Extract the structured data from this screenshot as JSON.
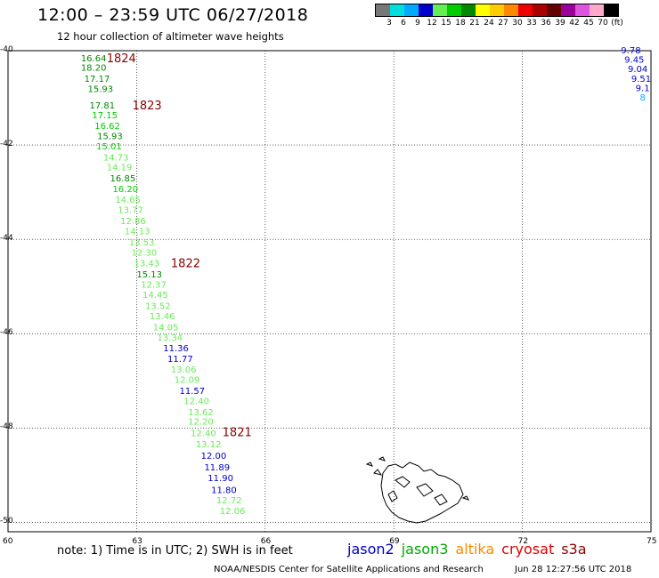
{
  "header": {
    "title": "12:00 – 23:59 UTC 06/27/2018",
    "subtitle": "12 hour collection of altimeter wave heights"
  },
  "legend": {
    "swatches": [
      {
        "color": "#777777"
      },
      {
        "color": "#00dddd"
      },
      {
        "color": "#00aaff"
      },
      {
        "color": "#0000cc"
      },
      {
        "color": "#66ee55"
      },
      {
        "color": "#00cc00"
      },
      {
        "color": "#008800"
      },
      {
        "color": "#ffff00"
      },
      {
        "color": "#ffcc00"
      },
      {
        "color": "#ff8800"
      },
      {
        "color": "#ee0000"
      },
      {
        "color": "#aa0000"
      },
      {
        "color": "#660000"
      },
      {
        "color": "#990099"
      },
      {
        "color": "#dd55dd"
      },
      {
        "color": "#ffaacc"
      },
      {
        "color": "#000000"
      }
    ],
    "tick_labels": [
      "3",
      "6",
      "9",
      "12",
      "15",
      "18",
      "21",
      "24",
      "27",
      "30",
      "33",
      "36",
      "39",
      "42",
      "45",
      "70",
      "(ft)"
    ]
  },
  "map": {
    "lat_ticks": [
      "-40",
      "-42",
      "-44",
      "-46",
      "-48",
      "-50"
    ],
    "lon_ticks": [
      "60",
      "63",
      "66",
      "69",
      "72",
      "75"
    ],
    "lat_range": [
      -50.2,
      -40.0
    ],
    "lon_range": [
      60,
      75
    ],
    "grid": "dotted",
    "track_main": [
      {
        "lat": -40.15,
        "lon": 61.7,
        "v": "16.64",
        "c": "#008800"
      },
      {
        "lat": -40.35,
        "lon": 61.7,
        "v": "18.20",
        "c": "#008800"
      },
      {
        "lat": -40.58,
        "lon": 61.78,
        "v": "17.17",
        "c": "#008800"
      },
      {
        "lat": -40.8,
        "lon": 61.86,
        "v": "15.93",
        "c": "#008800"
      },
      {
        "lat": -41.15,
        "lon": 61.9,
        "v": "17.81",
        "c": "#008800"
      },
      {
        "lat": -41.36,
        "lon": 61.96,
        "v": "17.15",
        "c": "#00cc00"
      },
      {
        "lat": -41.58,
        "lon": 62.02,
        "v": "16.62",
        "c": "#00cc00"
      },
      {
        "lat": -41.8,
        "lon": 62.08,
        "v": "15.93",
        "c": "#008800"
      },
      {
        "lat": -42.02,
        "lon": 62.06,
        "v": "15.01",
        "c": "#00cc00"
      },
      {
        "lat": -42.25,
        "lon": 62.22,
        "v": "14.73",
        "c": "#66ee55"
      },
      {
        "lat": -42.46,
        "lon": 62.3,
        "v": "14.19",
        "c": "#66ee55"
      },
      {
        "lat": -42.7,
        "lon": 62.38,
        "v": "16.85",
        "c": "#008800"
      },
      {
        "lat": -42.92,
        "lon": 62.44,
        "v": "16.20",
        "c": "#00cc00"
      },
      {
        "lat": -43.15,
        "lon": 62.5,
        "v": "14.65",
        "c": "#66ee55"
      },
      {
        "lat": -43.37,
        "lon": 62.56,
        "v": "13.77",
        "c": "#66ee55"
      },
      {
        "lat": -43.6,
        "lon": 62.62,
        "v": "12.86",
        "c": "#66ee55"
      },
      {
        "lat": -43.82,
        "lon": 62.72,
        "v": "14.13",
        "c": "#66ee55"
      },
      {
        "lat": -44.05,
        "lon": 62.82,
        "v": "13.53",
        "c": "#66ee55"
      },
      {
        "lat": -44.27,
        "lon": 62.88,
        "v": "12.30",
        "c": "#66ee55"
      },
      {
        "lat": -44.5,
        "lon": 62.94,
        "v": "13.43",
        "c": "#66ee55"
      },
      {
        "lat": -44.73,
        "lon": 63.0,
        "v": "15.13",
        "c": "#008800"
      },
      {
        "lat": -44.95,
        "lon": 63.1,
        "v": "12.37",
        "c": "#66ee55"
      },
      {
        "lat": -45.17,
        "lon": 63.14,
        "v": "14.45",
        "c": "#66ee55"
      },
      {
        "lat": -45.4,
        "lon": 63.2,
        "v": "13.52",
        "c": "#66ee55"
      },
      {
        "lat": -45.62,
        "lon": 63.3,
        "v": "13.46",
        "c": "#66ee55"
      },
      {
        "lat": -45.85,
        "lon": 63.38,
        "v": "14.05",
        "c": "#66ee55"
      },
      {
        "lat": -46.07,
        "lon": 63.48,
        "v": "13.34",
        "c": "#66ee55"
      },
      {
        "lat": -46.3,
        "lon": 63.62,
        "v": "11.36",
        "c": "#0000cc"
      },
      {
        "lat": -46.52,
        "lon": 63.72,
        "v": "11.77",
        "c": "#0000cc"
      },
      {
        "lat": -46.75,
        "lon": 63.8,
        "v": "13.06",
        "c": "#66ee55"
      },
      {
        "lat": -46.97,
        "lon": 63.88,
        "v": "12.09",
        "c": "#66ee55"
      },
      {
        "lat": -47.2,
        "lon": 64.0,
        "v": "11.57",
        "c": "#0000cc"
      },
      {
        "lat": -47.42,
        "lon": 64.1,
        "v": "12.40",
        "c": "#66ee55"
      },
      {
        "lat": -47.65,
        "lon": 64.2,
        "v": "13.62",
        "c": "#66ee55"
      },
      {
        "lat": -47.85,
        "lon": 64.2,
        "v": "12.20",
        "c": "#66ee55"
      },
      {
        "lat": -48.1,
        "lon": 64.26,
        "v": "12.40",
        "c": "#66ee55"
      },
      {
        "lat": -48.33,
        "lon": 64.38,
        "v": "13.12",
        "c": "#66ee55"
      },
      {
        "lat": -48.58,
        "lon": 64.5,
        "v": "12.00",
        "c": "#0000cc"
      },
      {
        "lat": -48.82,
        "lon": 64.58,
        "v": "11.89",
        "c": "#0000cc"
      },
      {
        "lat": -49.05,
        "lon": 64.66,
        "v": "11.90",
        "c": "#0000cc"
      },
      {
        "lat": -49.3,
        "lon": 64.74,
        "v": "11.80",
        "c": "#0000cc"
      },
      {
        "lat": -49.52,
        "lon": 64.86,
        "v": "12.72",
        "c": "#66ee55"
      },
      {
        "lat": -49.75,
        "lon": 64.94,
        "v": "12.06",
        "c": "#66ee55"
      }
    ],
    "track_right": [
      {
        "lat": -39.98,
        "lon": 74.3,
        "v": "9.78",
        "c": "#0000cc"
      },
      {
        "lat": -40.18,
        "lon": 74.38,
        "v": "9.45",
        "c": "#0000cc"
      },
      {
        "lat": -40.38,
        "lon": 74.46,
        "v": "9.04",
        "c": "#0000cc"
      },
      {
        "lat": -40.58,
        "lon": 74.54,
        "v": "9.51",
        "c": "#0000cc"
      },
      {
        "lat": -40.78,
        "lon": 74.64,
        "v": "9.1",
        "c": "#0000cc"
      },
      {
        "lat": -40.98,
        "lon": 74.74,
        "v": "8",
        "c": "#00aaff"
      }
    ],
    "time_labels": [
      {
        "lat": -40.15,
        "lon": 62.3,
        "t": "1824"
      },
      {
        "lat": -41.15,
        "lon": 62.9,
        "t": "1823"
      },
      {
        "lat": -44.5,
        "lon": 63.8,
        "t": "1822"
      },
      {
        "lat": -48.08,
        "lon": 65.0,
        "t": "1821"
      }
    ],
    "time_label_color": "#880000"
  },
  "footer": {
    "note": "note:  1) Time is in UTC;  2) SWH is in feet",
    "satellites": [
      {
        "name": "jason2",
        "color": "#0000cc"
      },
      {
        "name": "jason3",
        "color": "#00aa00"
      },
      {
        "name": "altika",
        "color": "#ff8800"
      },
      {
        "name": "cryosat",
        "color": "#dd0000"
      },
      {
        "name": "s3a",
        "color": "#880000"
      }
    ],
    "credit": "NOAA/NESDIS Center for Satellite Applications and Research",
    "generated": "Jun 28 12:27:56 UTC 2018"
  }
}
